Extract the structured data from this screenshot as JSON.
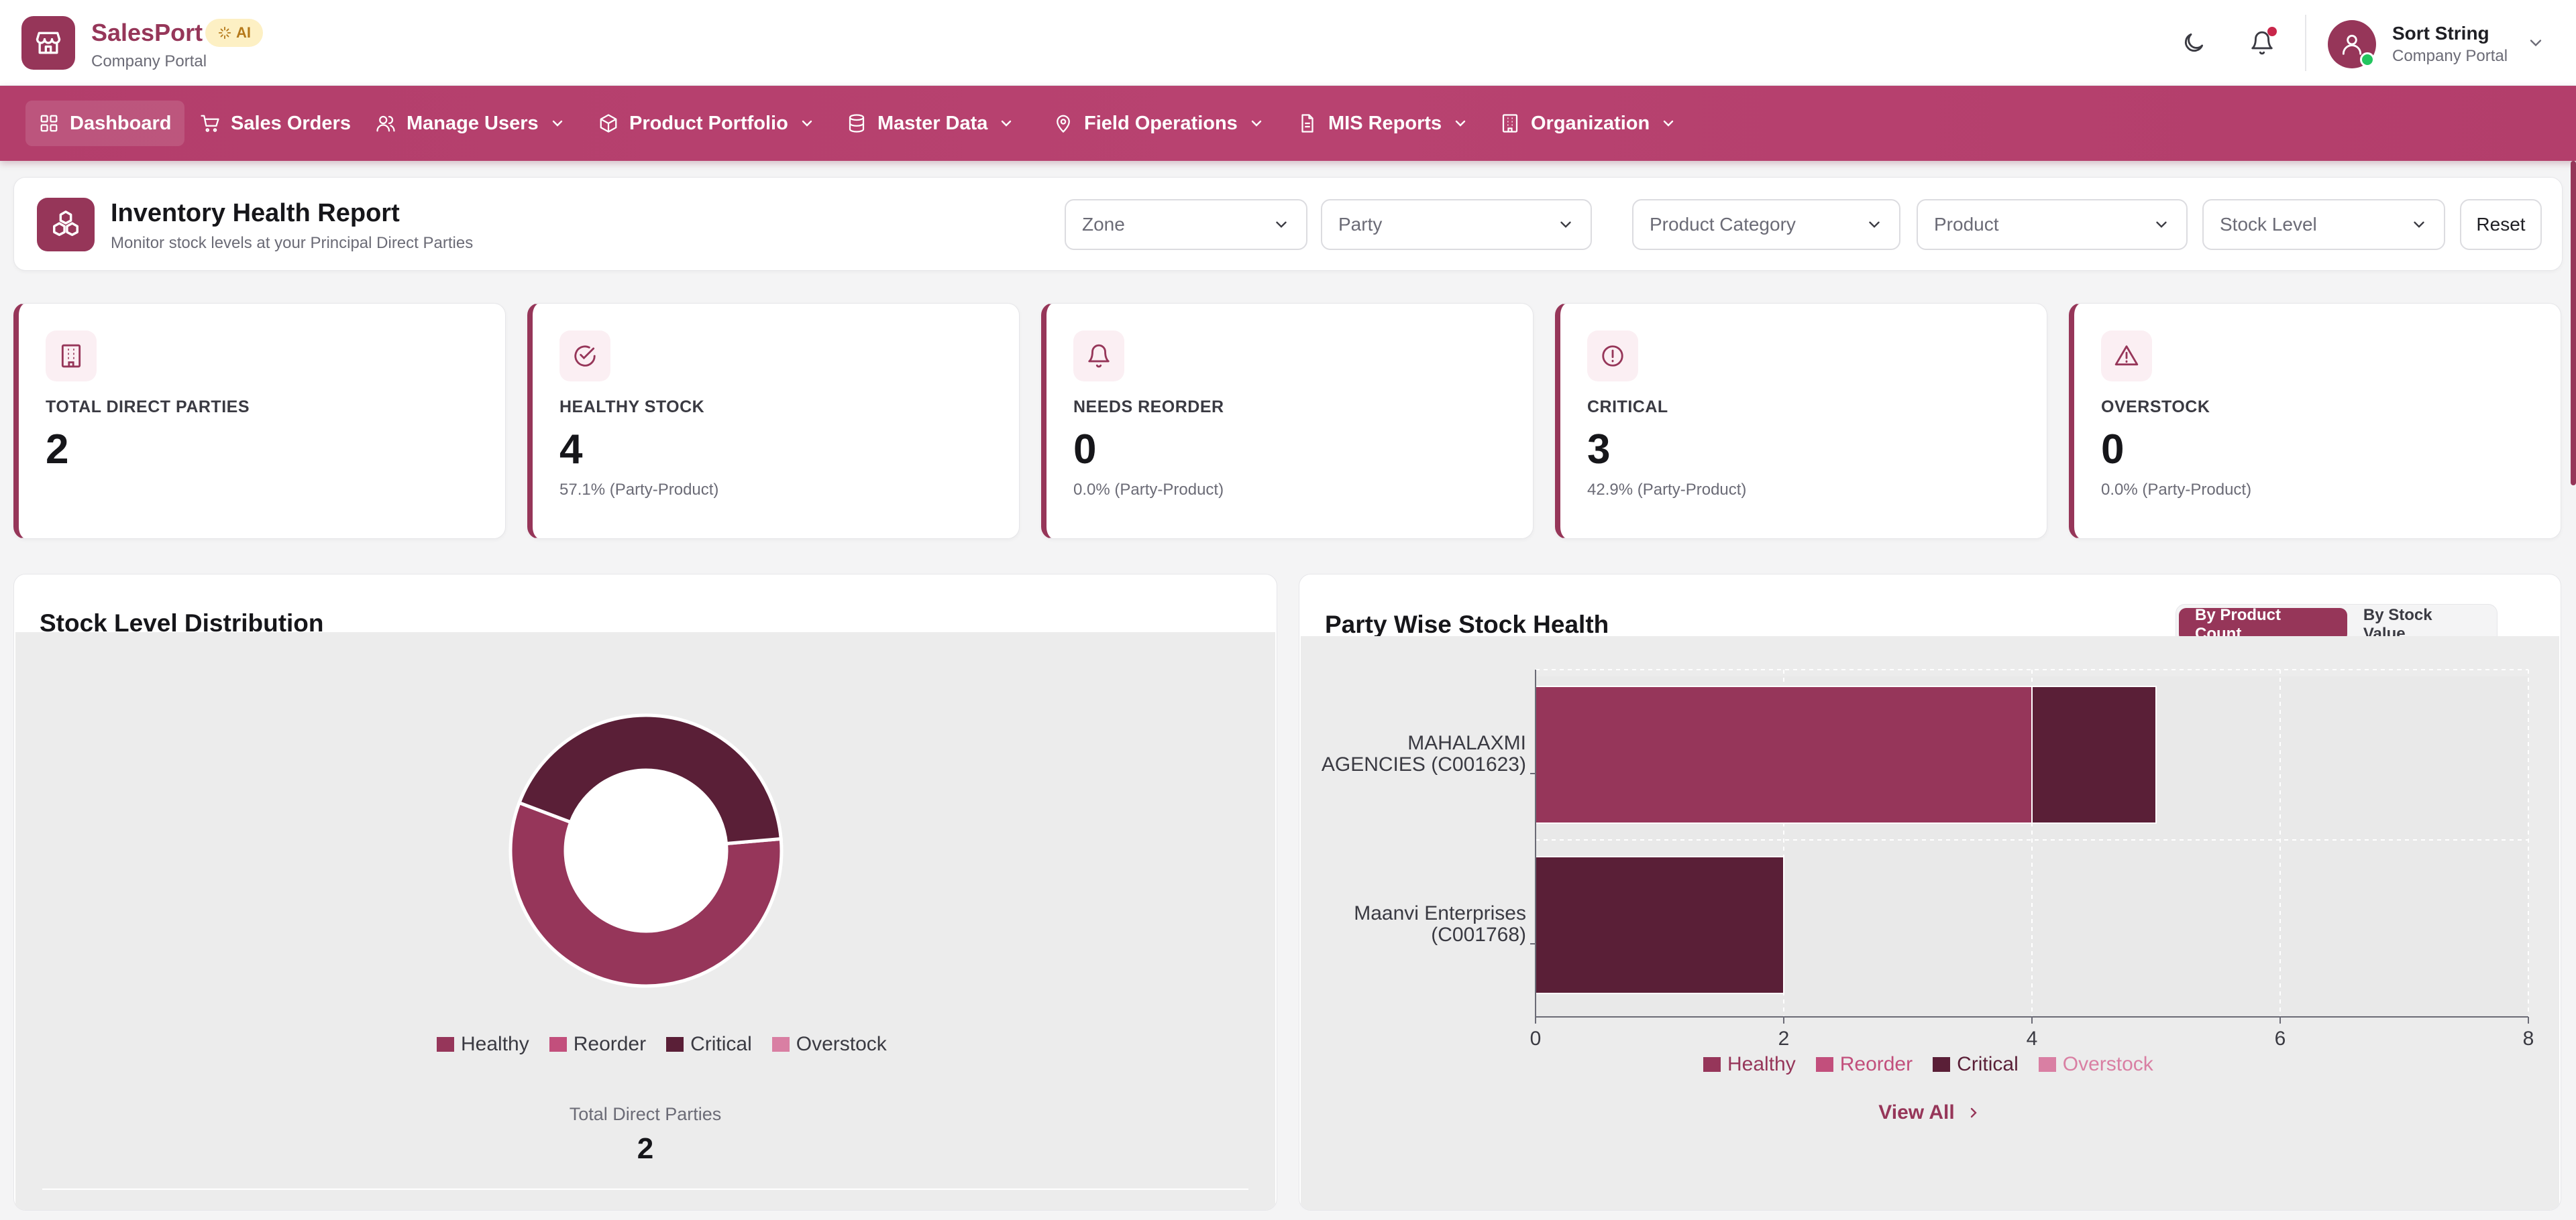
{
  "app": {
    "name": "SalesPort",
    "badge": "AI",
    "subtitle": "Company Portal"
  },
  "user": {
    "name": "Sort String",
    "subtitle": "Company Portal"
  },
  "nav": {
    "items": [
      {
        "label": "Dashboard",
        "icon": "grid-icon",
        "has_dropdown": false,
        "active": true
      },
      {
        "label": "Sales Orders",
        "icon": "cart-icon",
        "has_dropdown": false
      },
      {
        "label": "Manage Users",
        "icon": "users-icon",
        "has_dropdown": true
      },
      {
        "label": "Product Portfolio",
        "icon": "box-icon",
        "has_dropdown": true
      },
      {
        "label": "Master Data",
        "icon": "database-icon",
        "has_dropdown": true
      },
      {
        "label": "Field Operations",
        "icon": "map-pin-icon",
        "has_dropdown": true
      },
      {
        "label": "MIS Reports",
        "icon": "report-icon",
        "has_dropdown": true
      },
      {
        "label": "Organization",
        "icon": "building-icon",
        "has_dropdown": true
      }
    ]
  },
  "report": {
    "title": "Inventory Health Report",
    "subtitle": "Monitor stock levels at your Principal Direct Parties"
  },
  "filters": {
    "zone": "Zone",
    "party": "Party",
    "category": "Product Category",
    "product": "Product",
    "stock_level": "Stock Level",
    "reset": "Reset"
  },
  "kpis": [
    {
      "label": "TOTAL DIRECT PARTIES",
      "value": "2",
      "sub": "",
      "icon": "building-icon"
    },
    {
      "label": "HEALTHY STOCK",
      "value": "4",
      "sub": "57.1% (Party-Product)",
      "icon": "check-circle-icon"
    },
    {
      "label": "NEEDS REORDER",
      "value": "0",
      "sub": "0.0% (Party-Product)",
      "icon": "bell-icon"
    },
    {
      "label": "CRITICAL",
      "value": "3",
      "sub": "42.9% (Party-Product)",
      "icon": "alert-circle-icon"
    },
    {
      "label": "OVERSTOCK",
      "value": "0",
      "sub": "0.0% (Party-Product)",
      "icon": "alert-triangle-icon"
    }
  ],
  "colors": {
    "primary": "#963659",
    "healthy": "#96365a",
    "reorder": "#c24f7c",
    "critical": "#5a1f37",
    "overstock": "#d97fa3",
    "nav_bg": "#b33e6b"
  },
  "stock_distribution": {
    "title": "Stock Level Distribution",
    "total_label": "Total Direct Parties",
    "total_value": "2",
    "chart_data": {
      "type": "pie",
      "donut": true,
      "labels": [
        "Healthy",
        "Reorder",
        "Critical",
        "Overstock"
      ],
      "values": [
        4,
        0,
        3,
        0
      ],
      "legend": "bottom"
    }
  },
  "party_health": {
    "title": "Party Wise Stock Health",
    "toggle": {
      "by_count": "By Product Count",
      "by_value": "By Stock Value",
      "active": "by_count"
    },
    "view_all": "View All",
    "chart_data": {
      "type": "bar",
      "orientation": "horizontal",
      "stacked": true,
      "categories": [
        "MAHALAXMI AGENCIES (C001623)",
        "Maanvi Enterprises (C001768)"
      ],
      "category_lines": [
        [
          "MAHALAXMI",
          "AGENCIES (C001623)"
        ],
        [
          "Maanvi Enterprises",
          "(C001768)"
        ]
      ],
      "series": [
        {
          "name": "Healthy",
          "values": [
            4,
            0
          ]
        },
        {
          "name": "Reorder",
          "values": [
            0,
            0
          ]
        },
        {
          "name": "Critical",
          "values": [
            1,
            2
          ]
        },
        {
          "name": "Overstock",
          "values": [
            0,
            0
          ]
        }
      ],
      "xlim": [
        0,
        8
      ],
      "xticks": [
        0,
        2,
        4,
        6,
        8
      ],
      "grid": true,
      "legend": "bottom"
    }
  }
}
